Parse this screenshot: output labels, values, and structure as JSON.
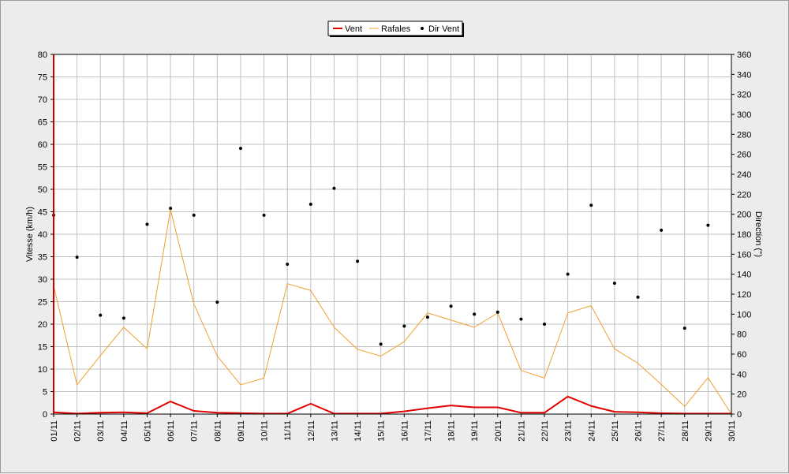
{
  "chart_data": {
    "type": "line",
    "xlabel": "",
    "ylabel": "Vitesse (km/h)",
    "y2label": "Direction (°)",
    "categories": [
      "01/11",
      "02/11",
      "03/11",
      "04/11",
      "05/11",
      "06/11",
      "07/11",
      "08/11",
      "09/11",
      "10/11",
      "11/11",
      "12/11",
      "13/11",
      "14/11",
      "15/11",
      "16/11",
      "17/11",
      "18/11",
      "19/11",
      "20/11",
      "21/11",
      "22/11",
      "23/11",
      "24/11",
      "25/11",
      "26/11",
      "27/11",
      "28/11",
      "29/11",
      "30/11"
    ],
    "ylim": [
      0,
      80
    ],
    "y2lim": [
      0,
      360
    ],
    "yticks": [
      0,
      5,
      10,
      15,
      20,
      25,
      30,
      35,
      40,
      45,
      50,
      55,
      60,
      65,
      70,
      75,
      80
    ],
    "y2ticks": [
      0,
      20,
      40,
      60,
      80,
      100,
      120,
      140,
      160,
      180,
      200,
      220,
      240,
      260,
      280,
      300,
      320,
      340,
      360
    ],
    "grid": true,
    "legend_position": "top-center",
    "series": [
      {
        "name": "Vent",
        "kind": "line",
        "axis": "left",
        "color": "#e00000",
        "values": [
          0.4,
          0.1,
          0.3,
          0.4,
          0.2,
          2.8,
          0.7,
          0.3,
          0.2,
          0.1,
          0.1,
          2.3,
          0.1,
          0.1,
          0.1,
          0.6,
          1.3,
          1.9,
          1.5,
          1.5,
          0.3,
          0.3,
          3.9,
          1.8,
          0.5,
          0.4,
          0.2,
          0.1,
          0.1,
          0.1
        ]
      },
      {
        "name": "Rafales",
        "kind": "line",
        "axis": "left",
        "color": "#f0a030",
        "values": [
          28.5,
          6.5,
          13.0,
          19.3,
          14.5,
          45.5,
          24.5,
          12.9,
          6.5,
          8.0,
          29.0,
          27.5,
          19.3,
          14.4,
          12.9,
          16.1,
          22.5,
          20.9,
          19.3,
          22.5,
          9.7,
          8.0,
          22.5,
          24.1,
          14.5,
          11.3,
          6.6,
          1.7,
          8.1,
          0.0
        ]
      },
      {
        "name": "Dir Vent",
        "kind": "scatter",
        "axis": "right",
        "color": "#000000",
        "values": [
          199,
          157,
          99,
          96,
          190,
          206,
          199,
          112,
          266,
          199,
          150,
          210,
          226,
          153,
          70,
          88,
          97,
          108,
          100,
          102,
          95,
          90,
          140,
          209,
          131,
          117,
          184,
          86,
          189,
          null
        ]
      }
    ]
  }
}
